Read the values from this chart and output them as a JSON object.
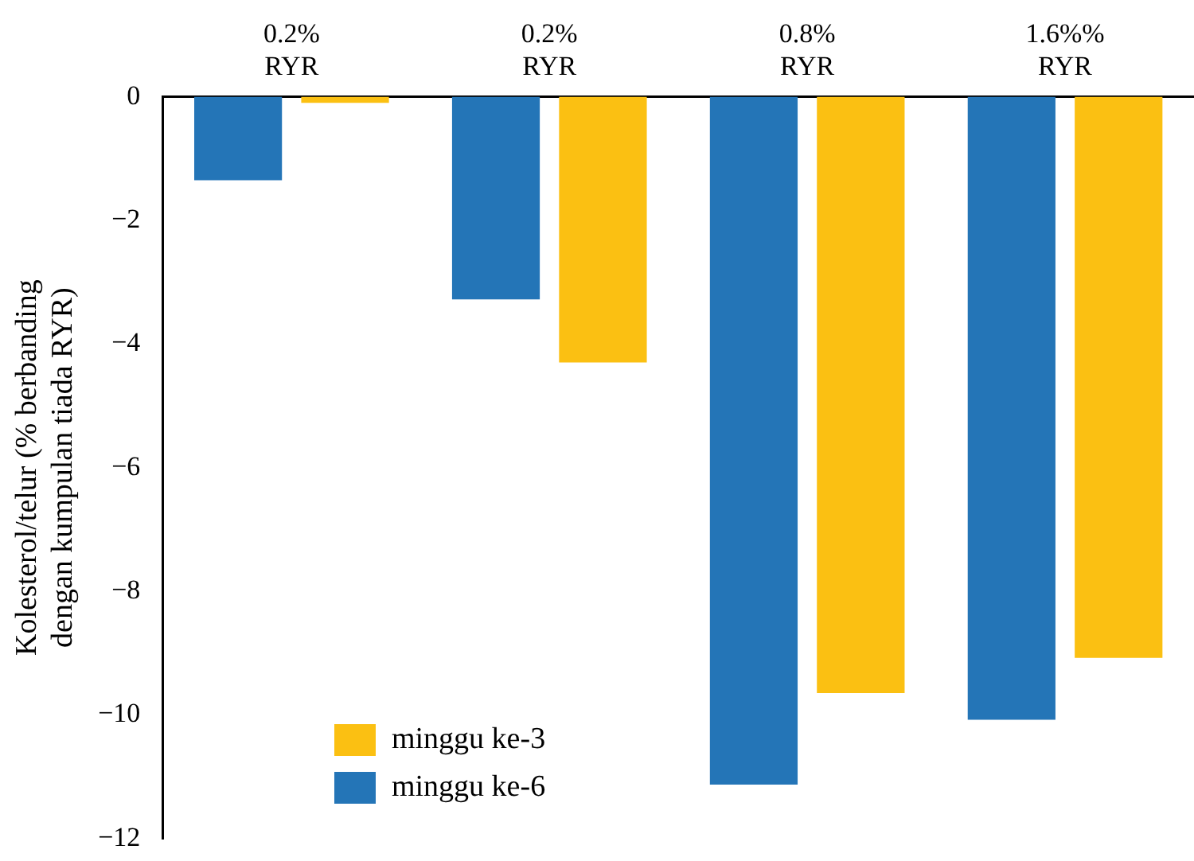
{
  "chart_data": {
    "type": "bar",
    "ylabel": "Kolesterol/telur (% berbanding\ndengan kumpulan tiada RYR)",
    "categories": [
      "0.2%\nRYR",
      "0.2%\nRYR",
      "0.8%\nRYR",
      "1.6%%\nRYR"
    ],
    "series": [
      {
        "name": "minggu ke-6",
        "color": "#2475b7",
        "values": [
          -1.35,
          -3.28,
          -11.13,
          -10.08
        ]
      },
      {
        "name": "minggu ke-3",
        "color": "#fbc012",
        "values": [
          -0.1,
          -4.3,
          -9.65,
          -9.08
        ]
      }
    ],
    "ylim": [
      -12,
      0
    ],
    "yticks": [
      {
        "value": 0,
        "label": "0"
      },
      {
        "value": -2,
        "label": "−2"
      },
      {
        "value": -4,
        "label": "−4"
      },
      {
        "value": -6,
        "label": "−6"
      },
      {
        "value": -8,
        "label": "−8"
      },
      {
        "value": -10,
        "label": "−10"
      },
      {
        "value": -12,
        "label": "−12"
      }
    ],
    "grid": false,
    "legend": "bottom left"
  }
}
